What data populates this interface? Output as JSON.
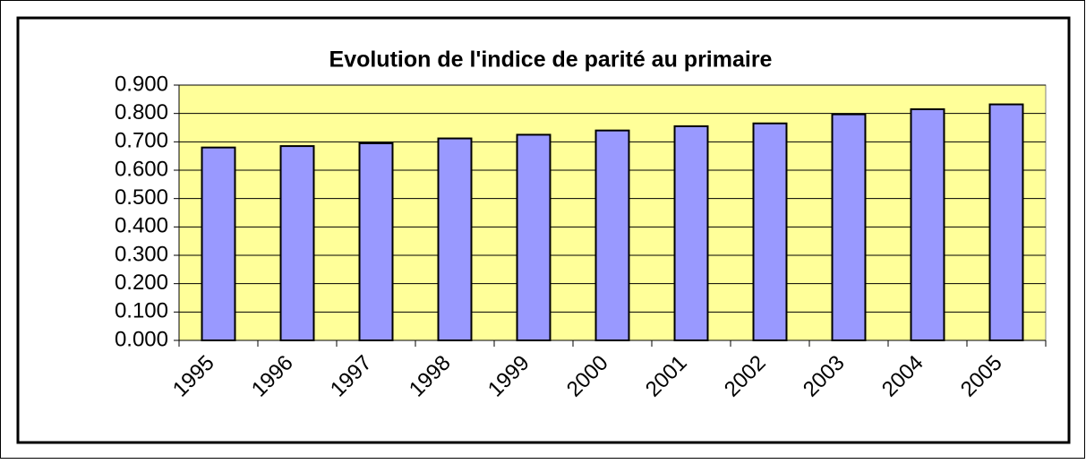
{
  "chart_data": {
    "type": "bar",
    "title": "Evolution de l'indice de parité au primaire",
    "categories": [
      "1995",
      "1996",
      "1997",
      "1998",
      "1999",
      "2000",
      "2001",
      "2002",
      "2003",
      "2004",
      "2005"
    ],
    "values": [
      0.68,
      0.685,
      0.695,
      0.712,
      0.725,
      0.74,
      0.755,
      0.765,
      0.797,
      0.815,
      0.832
    ],
    "color": "#9999ff",
    "plot_background": "#ffff99",
    "ylim": [
      0,
      0.9
    ],
    "yticks": [
      {
        "value": 0,
        "label": "0.000"
      },
      {
        "value": 0.1,
        "label": "0.100"
      },
      {
        "value": 0.2,
        "label": "0.200"
      },
      {
        "value": 0.3,
        "label": "0.300"
      },
      {
        "value": 0.4,
        "label": "0.400"
      },
      {
        "value": 0.5,
        "label": "0.500"
      },
      {
        "value": 0.6,
        "label": "0.600"
      },
      {
        "value": 0.7,
        "label": "0.700"
      },
      {
        "value": 0.8,
        "label": "0.800"
      },
      {
        "value": 0.9,
        "label": "0.900"
      }
    ],
    "grid": true
  }
}
